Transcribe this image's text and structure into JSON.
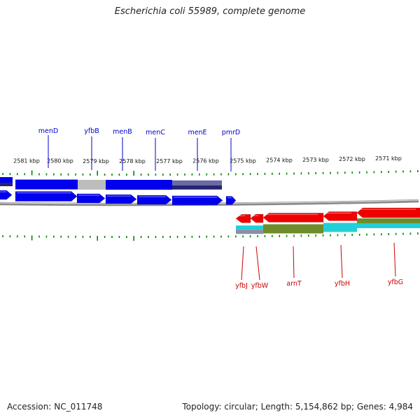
{
  "title": "Escherichia coli 55989, complete genome",
  "footer": {
    "accession": "Accession: NC_011748",
    "summary": "Topology: circular; Length: 5,154,862 bp; Genes: 4,984"
  },
  "colors": {
    "forward_gene": "#0000ee",
    "reverse_gene": "#ee0000",
    "forward_label": "#0000cc",
    "reverse_label": "#cc0000",
    "tick": "#008800",
    "backbone": "#8a8a8a",
    "cog_gray": "#bdbdbd",
    "cog_navy": "#24246e",
    "cog_slate": "#6a6aa8",
    "cog_olive": "#6f8c2a",
    "cog_cyan": "#22cfd8",
    "cog_slategray": "#8b8fa8"
  },
  "kbp_labels": [
    "2581 kbp",
    "2580 kbp",
    "2579 kbp",
    "2578 kbp",
    "2577 kbp",
    "2576 kbp",
    "2575 kbp",
    "2574 kbp",
    "2573 kbp",
    "2572 kbp",
    "2571 kbp"
  ],
  "forward_genes": [
    "menD",
    "yfbB",
    "menB",
    "menC",
    "menE",
    "pmrD"
  ],
  "reverse_genes": [
    "yfbJ",
    "yfbW",
    "arnT",
    "yfbH",
    "yfbG"
  ]
}
